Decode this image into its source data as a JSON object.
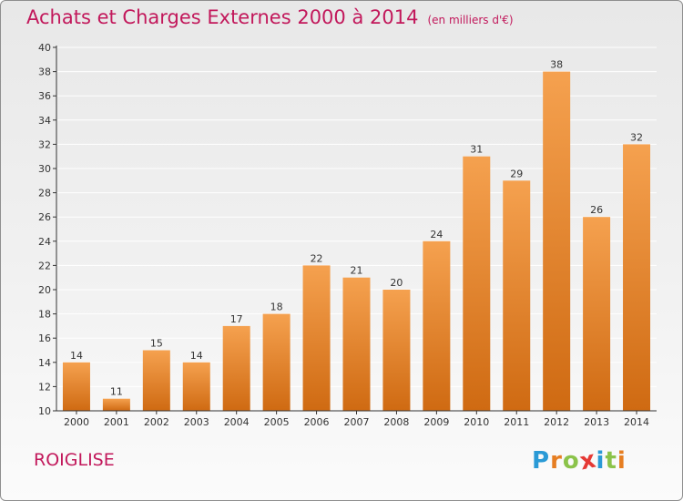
{
  "title": "Achats et Charges Externes 2000 à 2014",
  "unit_note": "(en milliers d'€)",
  "place_name": "ROIGLISE",
  "logo_text": "Proxiti",
  "colors": {
    "title": "#c2185b",
    "bar_top": "#f5a14f",
    "bar_bottom": "#cf6a12",
    "axis": "#333333",
    "grid": "#ffffff",
    "logo_letters": [
      "#2a9ad6",
      "#e67e22",
      "#8bc34a",
      "#e53935",
      "#2a9ad6",
      "#8bc34a",
      "#e67e22"
    ]
  },
  "chart_data": {
    "type": "bar",
    "title": "Achats et Charges Externes 2000 à 2014",
    "subtitle": "(en milliers d'€)",
    "xlabel": "",
    "ylabel": "",
    "categories": [
      "2000",
      "2001",
      "2002",
      "2003",
      "2004",
      "2005",
      "2006",
      "2007",
      "2008",
      "2009",
      "2010",
      "2011",
      "2012",
      "2013",
      "2014"
    ],
    "values": [
      14,
      11,
      15,
      14,
      17,
      18,
      22,
      21,
      20,
      24,
      31,
      29,
      38,
      26,
      32
    ],
    "ylim": [
      10,
      40
    ],
    "yticks": [
      10,
      12,
      14,
      16,
      18,
      20,
      22,
      24,
      26,
      28,
      30,
      32,
      34,
      36,
      38,
      40
    ],
    "grid": true,
    "data_labels": true
  }
}
